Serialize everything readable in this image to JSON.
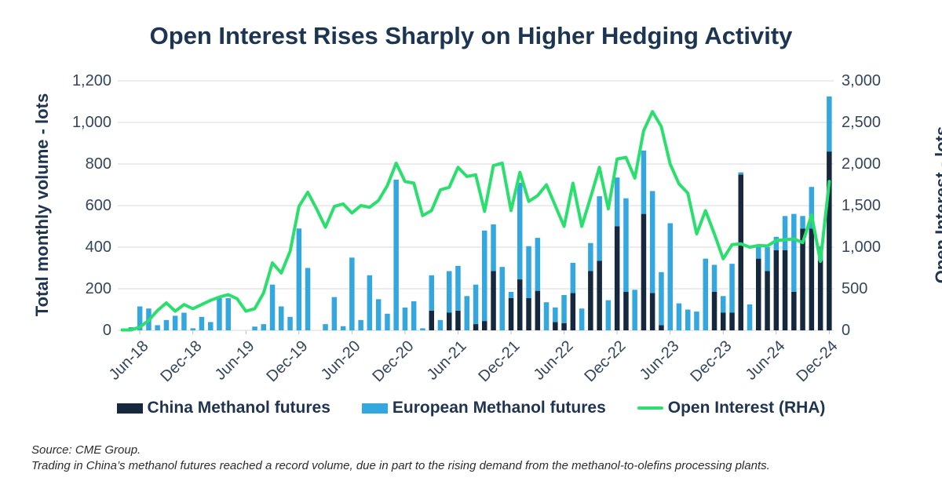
{
  "title": "Open Interest Rises Sharply on Higher Hedging Activity",
  "colors": {
    "china": "#16283e",
    "european": "#35a7df",
    "open_interest": "#2bdf6f",
    "grid": "#d9d9d9",
    "axis_text": "#35465c",
    "title_text": "#1b3553"
  },
  "chart_data": {
    "type": "bar",
    "subtype": "stacked bars with overlay line on right axis",
    "title": "Open Interest Rises Sharply on Higher Hedging Activity",
    "ylabel_left": "Total monthly volume - lots",
    "ylabel_right": "Open Interest - lots",
    "ylim_left": [
      0,
      1200
    ],
    "ylim_right": [
      0,
      3000
    ],
    "ytick_step_left": 200,
    "ytick_step_right": 500,
    "yticks_left_labels": [
      "0",
      "200",
      "400",
      "600",
      "800",
      "1,000",
      "1,200"
    ],
    "yticks_right_labels": [
      "0",
      "500",
      "1,000",
      "1,500",
      "2,000",
      "2,500",
      "3,000"
    ],
    "xtick_labels": [
      "Jun-18",
      "Dec-18",
      "Jun-19",
      "Dec-19",
      "Jun-20",
      "Dec-20",
      "Jun-21",
      "Dec-21",
      "Jun-22",
      "Dec-22",
      "Jun-23",
      "Dec-23",
      "Jun-24",
      "Dec-24"
    ],
    "grid": "horizontal only",
    "legend_position": "bottom center",
    "categories": [
      "Apr-18",
      "May-18",
      "Jun-18",
      "Jul-18",
      "Aug-18",
      "Sep-18",
      "Oct-18",
      "Nov-18",
      "Dec-18",
      "Jan-19",
      "Feb-19",
      "Mar-19",
      "Apr-19",
      "May-19",
      "Jun-19",
      "Jul-19",
      "Aug-19",
      "Sep-19",
      "Oct-19",
      "Nov-19",
      "Dec-19",
      "Jan-20",
      "Feb-20",
      "Mar-20",
      "Apr-20",
      "May-20",
      "Jun-20",
      "Jul-20",
      "Aug-20",
      "Sep-20",
      "Oct-20",
      "Nov-20",
      "Dec-20",
      "Jan-21",
      "Feb-21",
      "Mar-21",
      "Apr-21",
      "May-21",
      "Jun-21",
      "Jul-21",
      "Aug-21",
      "Sep-21",
      "Oct-21",
      "Nov-21",
      "Dec-21",
      "Jan-22",
      "Feb-22",
      "Mar-22",
      "Apr-22",
      "May-22",
      "Jun-22",
      "Jul-22",
      "Aug-22",
      "Sep-22",
      "Oct-22",
      "Nov-22",
      "Dec-22",
      "Jan-23",
      "Feb-23",
      "Mar-23",
      "Apr-23",
      "May-23",
      "Jun-23",
      "Jul-23",
      "Aug-23",
      "Sep-23",
      "Oct-23",
      "Nov-23",
      "Dec-23",
      "Jan-24",
      "Feb-24",
      "Mar-24",
      "Apr-24",
      "May-24",
      "Jun-24",
      "Jul-24",
      "Aug-24",
      "Sep-24",
      "Oct-24",
      "Nov-24",
      "Dec-24"
    ],
    "series": [
      {
        "name": "China Methanol futures",
        "axis": "left",
        "render": "bar-stack-bottom",
        "values": [
          0,
          0,
          0,
          0,
          0,
          0,
          0,
          0,
          0,
          0,
          0,
          0,
          0,
          0,
          0,
          0,
          0,
          0,
          0,
          0,
          0,
          0,
          0,
          0,
          0,
          0,
          0,
          0,
          0,
          0,
          0,
          0,
          0,
          0,
          0,
          95,
          0,
          85,
          95,
          0,
          30,
          45,
          285,
          0,
          155,
          245,
          155,
          190,
          0,
          40,
          35,
          180,
          0,
          285,
          335,
          0,
          500,
          185,
          0,
          560,
          180,
          25,
          0,
          0,
          0,
          0,
          0,
          185,
          85,
          85,
          750,
          0,
          345,
          285,
          385,
          385,
          185,
          490,
          490,
          335,
          860
        ]
      },
      {
        "name": "European Methanol futures",
        "axis": "left",
        "render": "bar-stack-top",
        "values": [
          0,
          15,
          115,
          105,
          25,
          50,
          70,
          85,
          10,
          65,
          40,
          155,
          155,
          0,
          0,
          18,
          30,
          220,
          115,
          65,
          490,
          300,
          0,
          30,
          160,
          20,
          350,
          50,
          265,
          150,
          80,
          725,
          110,
          140,
          10,
          170,
          50,
          200,
          215,
          165,
          190,
          435,
          225,
          305,
          30,
          465,
          250,
          255,
          135,
          70,
          135,
          145,
          105,
          135,
          310,
          145,
          235,
          450,
          195,
          305,
          490,
          255,
          515,
          130,
          100,
          90,
          345,
          130,
          80,
          235,
          10,
          125,
          60,
          115,
          65,
          165,
          375,
          60,
          200,
          70,
          265
        ]
      },
      {
        "name": "Open Interest (RHA)",
        "axis": "right",
        "render": "line",
        "values": [
          5,
          5,
          40,
          120,
          240,
          330,
          230,
          310,
          260,
          310,
          360,
          400,
          430,
          380,
          230,
          260,
          450,
          810,
          690,
          950,
          1490,
          1660,
          1460,
          1240,
          1490,
          1520,
          1410,
          1500,
          1480,
          1560,
          1740,
          2010,
          1790,
          1770,
          1380,
          1440,
          1690,
          1720,
          1960,
          1850,
          1870,
          1430,
          1980,
          2010,
          1440,
          1900,
          1550,
          1620,
          1750,
          1500,
          1250,
          1770,
          1250,
          1600,
          1960,
          1460,
          2060,
          2080,
          1830,
          2400,
          2630,
          2450,
          2000,
          1760,
          1650,
          1160,
          1440,
          1160,
          860,
          1030,
          1040,
          1000,
          1020,
          1015,
          1080,
          1090,
          1100,
          1055,
          1390,
          830,
          1790
        ]
      }
    ]
  },
  "legend": [
    {
      "label": "China Methanol futures"
    },
    {
      "label": "European Methanol futures"
    },
    {
      "label": "Open Interest (RHA)"
    }
  ],
  "footer": {
    "source": "Source: CME Group.",
    "note": "Trading in China’s methanol futures reached a record volume, due in part to the rising demand from the methanol-to-olefins processing plants."
  }
}
